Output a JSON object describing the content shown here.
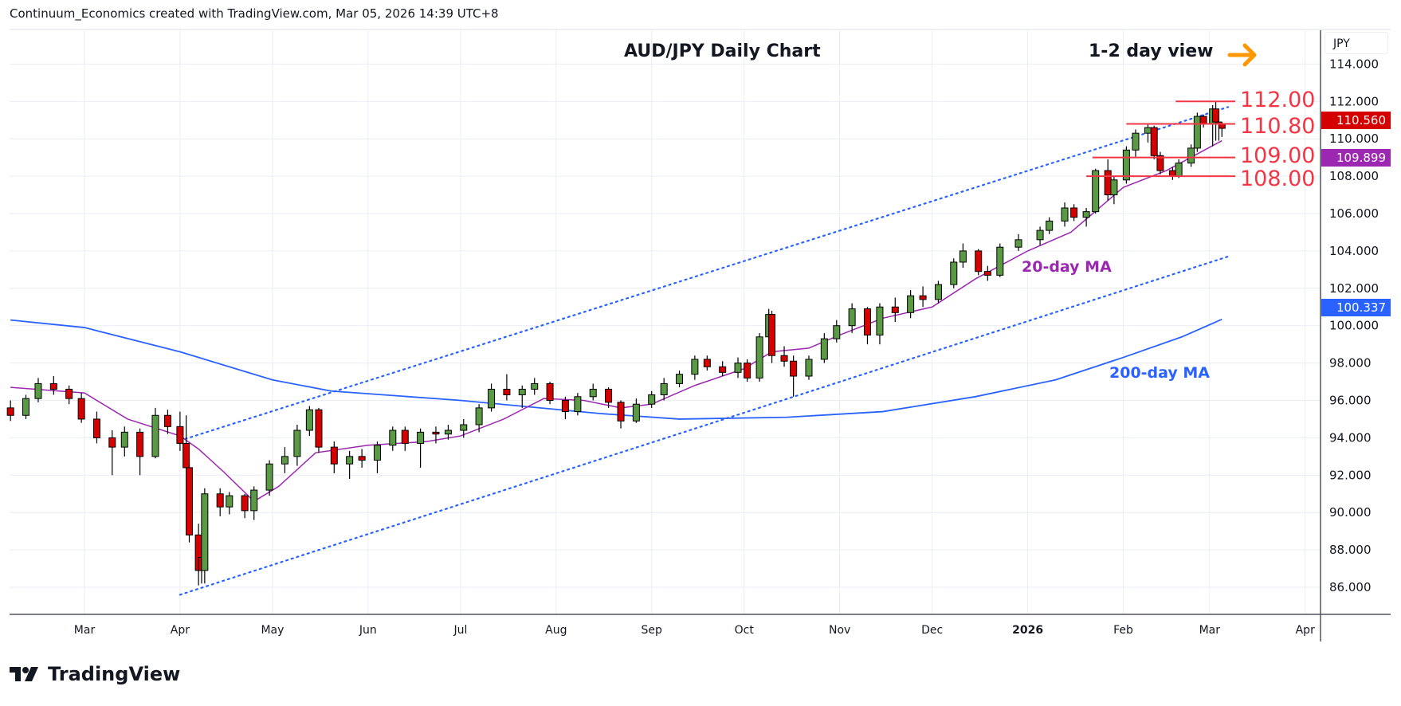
{
  "credit": "Continuum_Economics created with TradingView.com, Mar 05, 2026 14:39 UTC+8",
  "brand": "TradingView",
  "currency": "JPY",
  "colors": {
    "up": "#5b9a45",
    "down": "#d50000",
    "ma20": "#9c27b0",
    "ma200": "#2962ff",
    "level": "#f23645",
    "channel": "#2962ff",
    "arrow": "#ff9800"
  },
  "chart_data": {
    "type": "candlestick",
    "title": "AUD/JPY Daily Chart",
    "view_label": "1-2 day view",
    "view_direction": "right-arrow",
    "ylim": [
      84.6,
      115.8
    ],
    "y_ticks": [
      "86.000",
      "88.000",
      "90.000",
      "92.000",
      "94.000",
      "96.000",
      "98.000",
      "100.000",
      "102.000",
      "104.000",
      "106.000",
      "108.000",
      "110.000",
      "112.000",
      "114.000"
    ],
    "x_ticks": [
      {
        "date": "2025-03-01",
        "label": "Mar"
      },
      {
        "date": "2025-04-01",
        "label": "Apr"
      },
      {
        "date": "2025-05-01",
        "label": "May"
      },
      {
        "date": "2025-06-01",
        "label": "Jun"
      },
      {
        "date": "2025-07-01",
        "label": "Jul"
      },
      {
        "date": "2025-08-01",
        "label": "Aug"
      },
      {
        "date": "2025-09-01",
        "label": "Sep"
      },
      {
        "date": "2025-10-01",
        "label": "Oct"
      },
      {
        "date": "2025-11-01",
        "label": "Nov"
      },
      {
        "date": "2025-12-01",
        "label": "Dec"
      },
      {
        "date": "2026-01-01",
        "label": "2026"
      },
      {
        "date": "2026-02-01",
        "label": "Feb"
      },
      {
        "date": "2026-03-01",
        "label": "Mar"
      },
      {
        "date": "2026-04-01",
        "label": "Apr"
      }
    ],
    "candles_columns": [
      "date",
      "open",
      "high",
      "low",
      "close"
    ],
    "candles": [
      [
        "2025-02-05",
        95.6,
        96.0,
        94.9,
        95.2
      ],
      [
        "2025-02-10",
        95.2,
        96.3,
        95.0,
        96.1
      ],
      [
        "2025-02-14",
        96.1,
        97.2,
        95.9,
        96.9
      ],
      [
        "2025-02-19",
        96.9,
        97.3,
        96.3,
        96.6
      ],
      [
        "2025-02-24",
        96.6,
        96.8,
        95.8,
        96.1
      ],
      [
        "2025-02-28",
        96.1,
        96.4,
        94.8,
        95.0
      ],
      [
        "2025-03-05",
        95.0,
        95.4,
        93.7,
        94.0
      ],
      [
        "2025-03-10",
        94.0,
        94.4,
        92.0,
        93.5
      ],
      [
        "2025-03-14",
        93.5,
        94.6,
        93.0,
        94.3
      ],
      [
        "2025-03-19",
        94.3,
        94.5,
        92.0,
        93.0
      ],
      [
        "2025-03-24",
        93.0,
        95.6,
        92.9,
        95.2
      ],
      [
        "2025-03-28",
        95.2,
        95.5,
        94.2,
        94.6
      ],
      [
        "2025-04-01",
        94.6,
        95.4,
        93.3,
        93.7
      ],
      [
        "2025-04-03",
        93.7,
        95.2,
        92.1,
        92.4
      ],
      [
        "2025-04-04",
        92.4,
        92.6,
        88.4,
        88.8
      ],
      [
        "2025-04-07",
        88.8,
        89.4,
        86.1,
        86.9
      ],
      [
        "2025-04-08",
        87.6,
        88.2,
        86.2,
        86.9
      ],
      [
        "2025-04-09",
        86.9,
        91.3,
        86.2,
        91.0
      ],
      [
        "2025-04-14",
        91.0,
        91.3,
        89.8,
        90.3
      ],
      [
        "2025-04-17",
        90.3,
        91.1,
        89.9,
        90.9
      ],
      [
        "2025-04-22",
        90.9,
        91.0,
        89.7,
        90.1
      ],
      [
        "2025-04-25",
        90.1,
        91.4,
        89.6,
        91.2
      ],
      [
        "2025-04-30",
        91.2,
        92.8,
        90.9,
        92.6
      ],
      [
        "2025-05-05",
        92.6,
        93.5,
        92.1,
        93.0
      ],
      [
        "2025-05-09",
        93.0,
        94.7,
        92.5,
        94.4
      ],
      [
        "2025-05-13",
        94.4,
        95.7,
        94.1,
        95.5
      ],
      [
        "2025-05-16",
        95.5,
        95.6,
        93.2,
        93.5
      ],
      [
        "2025-05-21",
        93.5,
        93.8,
        92.1,
        92.6
      ],
      [
        "2025-05-26",
        92.6,
        93.3,
        91.8,
        93.0
      ],
      [
        "2025-05-30",
        93.0,
        93.4,
        92.4,
        92.8
      ],
      [
        "2025-06-04",
        92.8,
        93.8,
        92.1,
        93.6
      ],
      [
        "2025-06-09",
        93.6,
        94.6,
        93.3,
        94.4
      ],
      [
        "2025-06-13",
        94.4,
        94.6,
        93.3,
        93.7
      ],
      [
        "2025-06-18",
        93.7,
        94.5,
        92.4,
        94.3
      ],
      [
        "2025-06-23",
        94.3,
        94.6,
        93.7,
        94.2
      ],
      [
        "2025-06-27",
        94.2,
        94.7,
        93.9,
        94.4
      ],
      [
        "2025-07-02",
        94.4,
        95.0,
        94.0,
        94.7
      ],
      [
        "2025-07-07",
        94.7,
        95.8,
        94.3,
        95.6
      ],
      [
        "2025-07-11",
        95.6,
        96.9,
        95.4,
        96.6
      ],
      [
        "2025-07-16",
        96.6,
        97.4,
        96.0,
        96.3
      ],
      [
        "2025-07-21",
        96.3,
        96.8,
        95.6,
        96.6
      ],
      [
        "2025-07-25",
        96.6,
        97.2,
        96.3,
        96.9
      ],
      [
        "2025-07-30",
        96.9,
        97.0,
        95.8,
        96.0
      ],
      [
        "2025-08-04",
        96.0,
        96.2,
        95.0,
        95.4
      ],
      [
        "2025-08-08",
        95.4,
        96.4,
        95.2,
        96.2
      ],
      [
        "2025-08-13",
        96.2,
        96.9,
        96.0,
        96.6
      ],
      [
        "2025-08-18",
        96.6,
        96.7,
        95.6,
        95.9
      ],
      [
        "2025-08-22",
        95.9,
        96.0,
        94.5,
        94.9
      ],
      [
        "2025-08-27",
        94.9,
        96.1,
        94.8,
        95.8
      ],
      [
        "2025-09-01",
        95.8,
        96.5,
        95.6,
        96.3
      ],
      [
        "2025-09-05",
        96.3,
        97.2,
        96.0,
        96.9
      ],
      [
        "2025-09-10",
        96.9,
        97.6,
        96.7,
        97.4
      ],
      [
        "2025-09-15",
        97.4,
        98.4,
        97.1,
        98.2
      ],
      [
        "2025-09-19",
        98.2,
        98.4,
        97.6,
        97.8
      ],
      [
        "2025-09-24",
        97.8,
        98.1,
        97.3,
        97.5
      ],
      [
        "2025-09-29",
        97.5,
        98.3,
        97.2,
        98.0
      ],
      [
        "2025-10-02",
        98.0,
        98.2,
        97.0,
        97.2
      ],
      [
        "2025-10-06",
        97.2,
        99.6,
        97.0,
        99.4
      ],
      [
        "2025-10-09",
        99.4,
        100.9,
        99.3,
        100.6
      ],
      [
        "2025-10-10",
        100.6,
        100.8,
        98.0,
        98.4
      ],
      [
        "2025-10-14",
        98.4,
        98.9,
        97.8,
        98.1
      ],
      [
        "2025-10-17",
        98.1,
        98.4,
        96.2,
        97.3
      ],
      [
        "2025-10-22",
        97.3,
        98.4,
        97.1,
        98.2
      ],
      [
        "2025-10-27",
        98.2,
        99.6,
        98.0,
        99.3
      ],
      [
        "2025-10-31",
        99.3,
        100.3,
        99.1,
        100.0
      ],
      [
        "2025-11-05",
        100.0,
        101.2,
        99.6,
        100.9
      ],
      [
        "2025-11-10",
        100.9,
        101.0,
        99.0,
        99.5
      ],
      [
        "2025-11-14",
        99.5,
        101.2,
        99.0,
        101.0
      ],
      [
        "2025-11-19",
        101.0,
        101.5,
        100.2,
        100.7
      ],
      [
        "2025-11-24",
        100.7,
        101.9,
        100.4,
        101.6
      ],
      [
        "2025-11-28",
        101.6,
        102.1,
        101.0,
        101.4
      ],
      [
        "2025-12-03",
        101.4,
        102.4,
        101.2,
        102.2
      ],
      [
        "2025-12-08",
        102.2,
        103.6,
        102.0,
        103.4
      ],
      [
        "2025-12-11",
        103.4,
        104.4,
        103.1,
        104.0
      ],
      [
        "2025-12-16",
        104.0,
        104.1,
        102.7,
        102.9
      ],
      [
        "2025-12-19",
        102.9,
        103.2,
        102.4,
        102.7
      ],
      [
        "2025-12-23",
        102.7,
        104.4,
        102.6,
        104.2
      ],
      [
        "2025-12-29",
        104.2,
        104.9,
        104.0,
        104.6
      ],
      [
        "2026-01-05",
        104.6,
        105.3,
        104.3,
        105.1
      ],
      [
        "2026-01-08",
        105.1,
        105.8,
        104.9,
        105.6
      ],
      [
        "2026-01-13",
        105.6,
        106.6,
        105.3,
        106.3
      ],
      [
        "2026-01-16",
        106.3,
        106.5,
        105.6,
        105.8
      ],
      [
        "2026-01-20",
        105.8,
        106.3,
        105.3,
        106.1
      ],
      [
        "2026-01-23",
        106.1,
        108.4,
        106.0,
        108.3
      ],
      [
        "2026-01-27",
        108.3,
        108.9,
        106.7,
        107.0
      ],
      [
        "2026-01-29",
        107.0,
        108.0,
        106.5,
        107.8
      ],
      [
        "2026-02-02",
        107.8,
        109.6,
        107.6,
        109.4
      ],
      [
        "2026-02-05",
        109.4,
        110.5,
        109.0,
        110.3
      ],
      [
        "2026-02-09",
        110.3,
        110.8,
        109.8,
        110.6
      ],
      [
        "2026-02-11",
        110.6,
        110.7,
        108.9,
        109.1
      ],
      [
        "2026-02-13",
        109.1,
        109.3,
        108.1,
        108.3
      ],
      [
        "2026-02-17",
        108.3,
        108.5,
        107.8,
        108.0
      ],
      [
        "2026-02-19",
        108.0,
        108.9,
        107.9,
        108.7
      ],
      [
        "2026-02-23",
        108.7,
        109.7,
        108.5,
        109.5
      ],
      [
        "2026-02-25",
        109.5,
        111.4,
        109.3,
        111.2
      ],
      [
        "2026-02-27",
        111.2,
        111.3,
        110.6,
        110.8
      ],
      [
        "2026-03-02",
        110.8,
        111.8,
        109.6,
        111.6
      ],
      [
        "2026-03-03",
        111.6,
        112.0,
        109.9,
        110.9
      ],
      [
        "2026-03-04",
        110.9,
        111.1,
        109.9,
        110.8
      ],
      [
        "2026-03-05",
        110.8,
        110.9,
        110.1,
        110.56
      ]
    ],
    "ma20": {
      "label": "20-day MA",
      "last": "109.899",
      "points": [
        [
          "2025-02-05",
          96.7
        ],
        [
          "2025-03-01",
          96.4
        ],
        [
          "2025-03-15",
          95.0
        ],
        [
          "2025-04-01",
          94.1
        ],
        [
          "2025-04-07",
          93.4
        ],
        [
          "2025-04-15",
          92.2
        ],
        [
          "2025-04-25",
          90.6
        ],
        [
          "2025-05-03",
          91.4
        ],
        [
          "2025-05-15",
          93.2
        ],
        [
          "2025-06-01",
          93.6
        ],
        [
          "2025-06-20",
          93.8
        ],
        [
          "2025-07-01",
          94.1
        ],
        [
          "2025-07-15",
          95.0
        ],
        [
          "2025-07-28",
          96.1
        ],
        [
          "2025-08-10",
          96.0
        ],
        [
          "2025-08-22",
          95.6
        ],
        [
          "2025-09-01",
          95.8
        ],
        [
          "2025-09-15",
          96.8
        ],
        [
          "2025-10-01",
          97.7
        ],
        [
          "2025-10-10",
          98.6
        ],
        [
          "2025-10-22",
          98.8
        ],
        [
          "2025-11-01",
          99.5
        ],
        [
          "2025-11-15",
          100.4
        ],
        [
          "2025-12-01",
          101.0
        ],
        [
          "2025-12-15",
          102.5
        ],
        [
          "2026-01-01",
          104.0
        ],
        [
          "2026-01-15",
          105.0
        ],
        [
          "2026-02-01",
          107.4
        ],
        [
          "2026-02-15",
          108.3
        ],
        [
          "2026-03-05",
          109.9
        ]
      ]
    },
    "ma200": {
      "label": "200-day MA",
      "last": "100.337",
      "points": [
        [
          "2025-02-05",
          100.3
        ],
        [
          "2025-03-01",
          99.9
        ],
        [
          "2025-04-01",
          98.6
        ],
        [
          "2025-05-01",
          97.1
        ],
        [
          "2025-05-20",
          96.5
        ],
        [
          "2025-07-01",
          96.0
        ],
        [
          "2025-08-15",
          95.3
        ],
        [
          "2025-09-10",
          95.0
        ],
        [
          "2025-10-15",
          95.1
        ],
        [
          "2025-11-15",
          95.4
        ],
        [
          "2025-12-15",
          96.2
        ],
        [
          "2026-01-10",
          97.1
        ],
        [
          "2026-02-01",
          98.3
        ],
        [
          "2026-02-20",
          99.4
        ],
        [
          "2026-03-05",
          100.34
        ]
      ]
    },
    "channel": [
      {
        "name": "upper",
        "from": [
          "2025-04-01",
          93.85
        ],
        "to": [
          "2026-03-07",
          111.7
        ]
      },
      {
        "name": "lower",
        "from": [
          "2025-04-01",
          85.6
        ],
        "to": [
          "2026-03-07",
          103.7
        ]
      }
    ],
    "levels": [
      {
        "value": 112.0,
        "label": "112.00",
        "from": "2026-02-18"
      },
      {
        "value": 110.8,
        "label": "110.80",
        "from": "2026-02-02"
      },
      {
        "value": 109.0,
        "label": "109.00",
        "from": "2026-01-22"
      },
      {
        "value": 108.0,
        "label": "108.00",
        "from": "2026-01-20"
      }
    ],
    "last_price": "110.560"
  }
}
